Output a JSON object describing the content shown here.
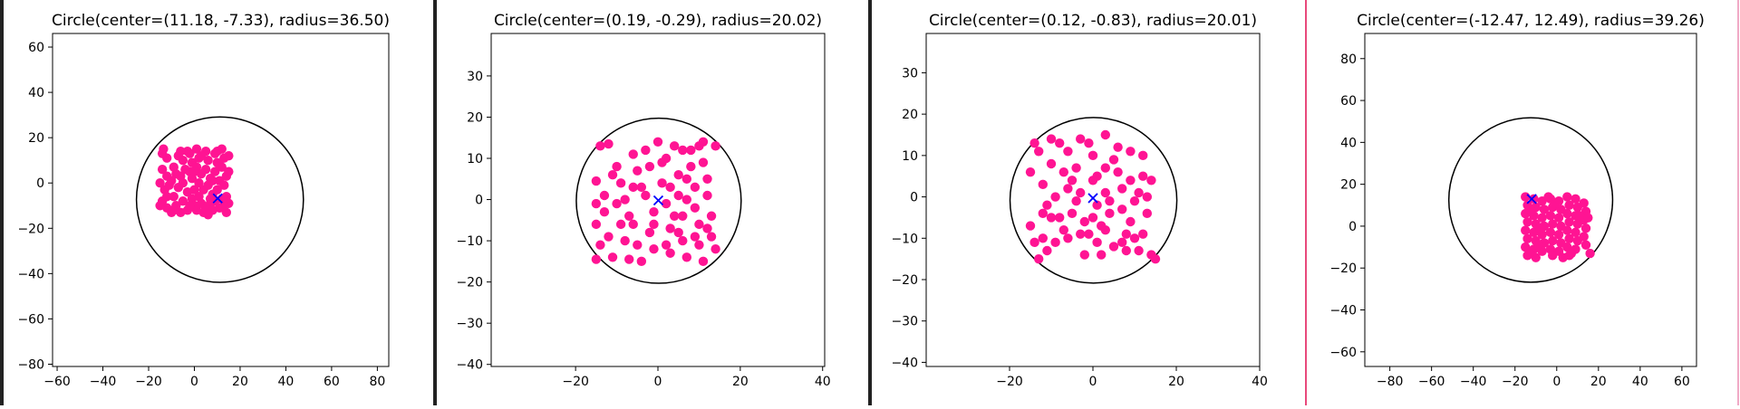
{
  "colors": {
    "points": "#ff1493",
    "center_marker": "#0000ff",
    "circle": "#000000"
  },
  "icons": {
    "center_marker": "x-marker"
  },
  "chart_data": [
    {
      "type": "scatter",
      "title": "Circle(center=(11.18, -7.33), radius=36.50)",
      "xlim": [
        -62,
        85
      ],
      "ylim": [
        -81,
        66
      ],
      "xticks": [
        -60,
        -40,
        -20,
        0,
        20,
        40,
        60,
        80
      ],
      "yticks": [
        -80,
        -60,
        -40,
        -20,
        0,
        20,
        40,
        60
      ],
      "circle": {
        "center": [
          11.18,
          -7.33
        ],
        "radius": 36.5
      },
      "points": [
        [
          -13.5,
          15
        ],
        [
          -12,
          11
        ],
        [
          -14,
          6
        ],
        [
          -12,
          3
        ],
        [
          -15,
          0
        ],
        [
          -13,
          -3
        ],
        [
          -14,
          -8
        ],
        [
          -12,
          -11
        ],
        [
          -10,
          -13
        ],
        [
          -9,
          7
        ],
        [
          -8,
          4
        ],
        [
          -10,
          1
        ],
        [
          -7,
          -2
        ],
        [
          -9,
          -6
        ],
        [
          -8,
          -10
        ],
        [
          -6,
          -13
        ],
        [
          -5,
          10
        ],
        [
          -4,
          6
        ],
        [
          -6,
          3
        ],
        [
          -5,
          0
        ],
        [
          -3,
          -4
        ],
        [
          -5,
          -8
        ],
        [
          -3,
          -12
        ],
        [
          -2,
          13
        ],
        [
          -1,
          9
        ],
        [
          -2,
          5
        ],
        [
          -1,
          2
        ],
        [
          0,
          -3
        ],
        [
          -1,
          -7
        ],
        [
          0,
          -10
        ],
        [
          1,
          15
        ],
        [
          2,
          11
        ],
        [
          1,
          7
        ],
        [
          3,
          4
        ],
        [
          2,
          0
        ],
        [
          4,
          -3
        ],
        [
          2,
          -6
        ],
        [
          3,
          -9
        ],
        [
          4,
          -13
        ],
        [
          5,
          14
        ],
        [
          6,
          10
        ],
        [
          5,
          6
        ],
        [
          7,
          2
        ],
        [
          6,
          -1
        ],
        [
          8,
          -5
        ],
        [
          7,
          -9
        ],
        [
          8,
          -12
        ],
        [
          9,
          13
        ],
        [
          10,
          9
        ],
        [
          9,
          5
        ],
        [
          11,
          1
        ],
        [
          10,
          -3
        ],
        [
          12,
          -7
        ],
        [
          11,
          -11
        ],
        [
          12,
          15
        ],
        [
          13,
          11
        ],
        [
          12,
          7
        ],
        [
          14,
          3
        ],
        [
          13,
          -1
        ],
        [
          14,
          -6
        ],
        [
          15,
          -9
        ],
        [
          14,
          -13
        ],
        [
          -11,
          -1
        ],
        [
          -7,
          12
        ],
        [
          -3,
          14
        ],
        [
          1,
          -12
        ],
        [
          5,
          -11
        ],
        [
          9,
          -8
        ],
        [
          13,
          -10
        ],
        [
          -14,
          13
        ],
        [
          3,
          12
        ],
        [
          7,
          -7
        ],
        [
          -2,
          -10
        ],
        [
          10,
          14
        ],
        [
          15,
          5
        ],
        [
          -15,
          -10
        ],
        [
          -12,
          -6
        ],
        [
          6,
          -14
        ],
        [
          0,
          5
        ],
        [
          11,
          8
        ],
        [
          -6,
          14
        ],
        [
          8,
          1
        ],
        [
          -9,
          -12
        ],
        [
          15,
          12
        ]
      ],
      "center_point": [
        10.2,
        -6.8
      ]
    },
    {
      "type": "scatter",
      "title": "Circle(center=(0.19, -0.29), radius=20.02)",
      "xlim": [
        -40.5,
        40.5
      ],
      "ylim": [
        -40.5,
        40.3
      ],
      "xticks": [
        -20,
        0,
        20,
        40
      ],
      "yticks": [
        -40,
        -30,
        -20,
        -10,
        0,
        10,
        20,
        30
      ],
      "circle": {
        "center": [
          0.19,
          -0.29
        ],
        "radius": 20.02
      },
      "points": [
        [
          -14,
          13
        ],
        [
          -12,
          13.5
        ],
        [
          -10,
          8
        ],
        [
          -9,
          4
        ],
        [
          -15,
          4.5
        ],
        [
          -15,
          -6
        ],
        [
          -14,
          -11
        ],
        [
          -15,
          -14.5
        ],
        [
          -13,
          -3
        ],
        [
          -10,
          -1
        ],
        [
          -12,
          -9
        ],
        [
          -11,
          -14
        ],
        [
          -8,
          0
        ],
        [
          -7,
          -4
        ],
        [
          -8,
          -10
        ],
        [
          -6,
          -6
        ],
        [
          -6,
          11
        ],
        [
          -5,
          7
        ],
        [
          -4,
          3
        ],
        [
          -3,
          12
        ],
        [
          -2,
          8
        ],
        [
          -2,
          -8
        ],
        [
          -1,
          -3
        ],
        [
          -1,
          -12
        ],
        [
          0,
          14
        ],
        [
          1,
          4
        ],
        [
          2,
          10
        ],
        [
          2,
          -1
        ],
        [
          3,
          -7
        ],
        [
          3,
          -13
        ],
        [
          4,
          13
        ],
        [
          5,
          6
        ],
        [
          5,
          1
        ],
        [
          6,
          -4
        ],
        [
          6,
          -10
        ],
        [
          7,
          -14
        ],
        [
          8,
          12
        ],
        [
          8,
          8
        ],
        [
          9,
          3
        ],
        [
          9,
          -2
        ],
        [
          10,
          -6
        ],
        [
          10,
          -11
        ],
        [
          11,
          14
        ],
        [
          11,
          9
        ],
        [
          12,
          5
        ],
        [
          12,
          1
        ],
        [
          13,
          -4
        ],
        [
          13,
          -9
        ],
        [
          14,
          13
        ],
        [
          14,
          -12
        ],
        [
          -4,
          -15
        ],
        [
          -7,
          -14.5
        ],
        [
          4,
          -4
        ],
        [
          -1,
          -6
        ],
        [
          7,
          0
        ],
        [
          11,
          -15
        ],
        [
          -3,
          1
        ],
        [
          1,
          9
        ],
        [
          6,
          12
        ],
        [
          -13,
          1
        ],
        [
          -9,
          -6
        ],
        [
          3,
          3
        ],
        [
          9,
          -9
        ],
        [
          -5,
          -11
        ],
        [
          12,
          -7
        ],
        [
          -15,
          -1
        ],
        [
          -11,
          6
        ],
        [
          10,
          13
        ],
        [
          -6,
          3
        ],
        [
          5,
          -8
        ],
        [
          2,
          -11
        ],
        [
          7,
          5
        ]
      ],
      "center_point": [
        0.1,
        -0.2
      ]
    },
    {
      "type": "scatter",
      "title": "Circle(center=(0.12, -0.83), radius=20.01)",
      "xlim": [
        -40,
        40
      ],
      "ylim": [
        -41,
        39.5
      ],
      "xticks": [
        -20,
        0,
        20,
        40
      ],
      "yticks": [
        -40,
        -30,
        -20,
        -10,
        0,
        10,
        20,
        30
      ],
      "circle": {
        "center": [
          0.12,
          -0.83
        ],
        "radius": 20.01
      },
      "points": [
        [
          -15,
          6
        ],
        [
          -14,
          13
        ],
        [
          -13,
          11
        ],
        [
          -12,
          3
        ],
        [
          -11,
          -2
        ],
        [
          -15,
          -7
        ],
        [
          -14,
          -11
        ],
        [
          -12,
          -10
        ],
        [
          -13,
          -15
        ],
        [
          -10,
          14
        ],
        [
          -10,
          8
        ],
        [
          -9,
          0
        ],
        [
          -8,
          -5
        ],
        [
          -9,
          -11
        ],
        [
          -11,
          -13
        ],
        [
          -7,
          6
        ],
        [
          -6,
          11
        ],
        [
          -6,
          2
        ],
        [
          -5,
          -4
        ],
        [
          -6,
          -10
        ],
        [
          -3,
          14
        ],
        [
          -4,
          7
        ],
        [
          -3,
          1
        ],
        [
          -2,
          -6
        ],
        [
          -3,
          -9
        ],
        [
          -2,
          -14
        ],
        [
          -1,
          13
        ],
        [
          0,
          10
        ],
        [
          0,
          4
        ],
        [
          1,
          -2
        ],
        [
          0,
          -5
        ],
        [
          1,
          -11
        ],
        [
          2,
          -14
        ],
        [
          3,
          15
        ],
        [
          3,
          7
        ],
        [
          3,
          1
        ],
        [
          4,
          -4
        ],
        [
          3,
          -8
        ],
        [
          5,
          -12
        ],
        [
          6,
          12
        ],
        [
          6,
          6
        ],
        [
          7,
          2
        ],
        [
          7,
          -3
        ],
        [
          8,
          -9
        ],
        [
          9,
          11
        ],
        [
          9,
          4
        ],
        [
          10,
          -1
        ],
        [
          9,
          -6
        ],
        [
          11,
          -13
        ],
        [
          12,
          10
        ],
        [
          12,
          5
        ],
        [
          13,
          0
        ],
        [
          13,
          -4
        ],
        [
          12,
          -9
        ],
        [
          14,
          -14
        ],
        [
          15,
          -15
        ],
        [
          -8,
          13
        ],
        [
          -4,
          -1
        ],
        [
          2,
          -7
        ],
        [
          5,
          9
        ],
        [
          10,
          -10
        ],
        [
          14,
          4
        ],
        [
          -12,
          -4
        ],
        [
          -7,
          -8
        ],
        [
          1,
          5
        ],
        [
          8,
          -13
        ],
        [
          -1,
          -9
        ],
        [
          4,
          -1
        ],
        [
          -10,
          -5
        ],
        [
          11,
          1
        ],
        [
          7,
          -11
        ],
        [
          -5,
          4
        ]
      ],
      "center_point": [
        0.0,
        -0.3
      ]
    },
    {
      "type": "scatter",
      "title": "Circle(center=(-12.47, 12.49), radius=39.26)",
      "xlim": [
        -92,
        67
      ],
      "ylim": [
        -67,
        92
      ],
      "xticks": [
        -80,
        -60,
        -40,
        -20,
        0,
        20,
        40,
        60
      ],
      "yticks": [
        -60,
        -40,
        -20,
        0,
        20,
        40,
        60,
        80
      ],
      "circle": {
        "center": [
          -12.47,
          12.49
        ],
        "radius": 39.26
      },
      "points": [
        [
          -15,
          14
        ],
        [
          -14,
          10
        ],
        [
          -15,
          6
        ],
        [
          -14,
          2
        ],
        [
          -15,
          -2
        ],
        [
          -14,
          -6
        ],
        [
          -15,
          -10
        ],
        [
          -14,
          -14
        ],
        [
          -11,
          13
        ],
        [
          -10,
          9
        ],
        [
          -11,
          5
        ],
        [
          -10,
          1
        ],
        [
          -11,
          -3
        ],
        [
          -10,
          -7
        ],
        [
          -11,
          -11
        ],
        [
          -10,
          -15
        ],
        [
          -7,
          12
        ],
        [
          -6,
          8
        ],
        [
          -7,
          4
        ],
        [
          -6,
          0
        ],
        [
          -7,
          -4
        ],
        [
          -6,
          -8
        ],
        [
          -7,
          -12
        ],
        [
          -3,
          13
        ],
        [
          -2,
          9
        ],
        [
          -3,
          5
        ],
        [
          -2,
          1
        ],
        [
          -3,
          -3
        ],
        [
          -2,
          -7
        ],
        [
          -3,
          -11
        ],
        [
          -2,
          -14
        ],
        [
          1,
          12
        ],
        [
          2,
          8
        ],
        [
          1,
          4
        ],
        [
          2,
          0
        ],
        [
          1,
          -4
        ],
        [
          2,
          -8
        ],
        [
          1,
          -12
        ],
        [
          5,
          14
        ],
        [
          6,
          10
        ],
        [
          5,
          6
        ],
        [
          6,
          2
        ],
        [
          5,
          -2
        ],
        [
          6,
          -6
        ],
        [
          5,
          -10
        ],
        [
          6,
          -14
        ],
        [
          9,
          13
        ],
        [
          10,
          9
        ],
        [
          9,
          5
        ],
        [
          10,
          1
        ],
        [
          9,
          -3
        ],
        [
          10,
          -7
        ],
        [
          9,
          -11
        ],
        [
          13,
          11
        ],
        [
          14,
          7
        ],
        [
          13,
          3
        ],
        [
          14,
          -1
        ],
        [
          13,
          -5
        ],
        [
          14,
          -9
        ],
        [
          16,
          -13
        ],
        [
          -13,
          -13
        ],
        [
          -8,
          -1
        ],
        [
          3,
          -15
        ],
        [
          11,
          5
        ],
        [
          7,
          -13
        ],
        [
          -4,
          14
        ],
        [
          0,
          11
        ],
        [
          -12,
          7
        ],
        [
          15,
          4
        ],
        [
          -9,
          -9
        ]
      ],
      "center_point": [
        -12.0,
        13.0
      ]
    }
  ]
}
